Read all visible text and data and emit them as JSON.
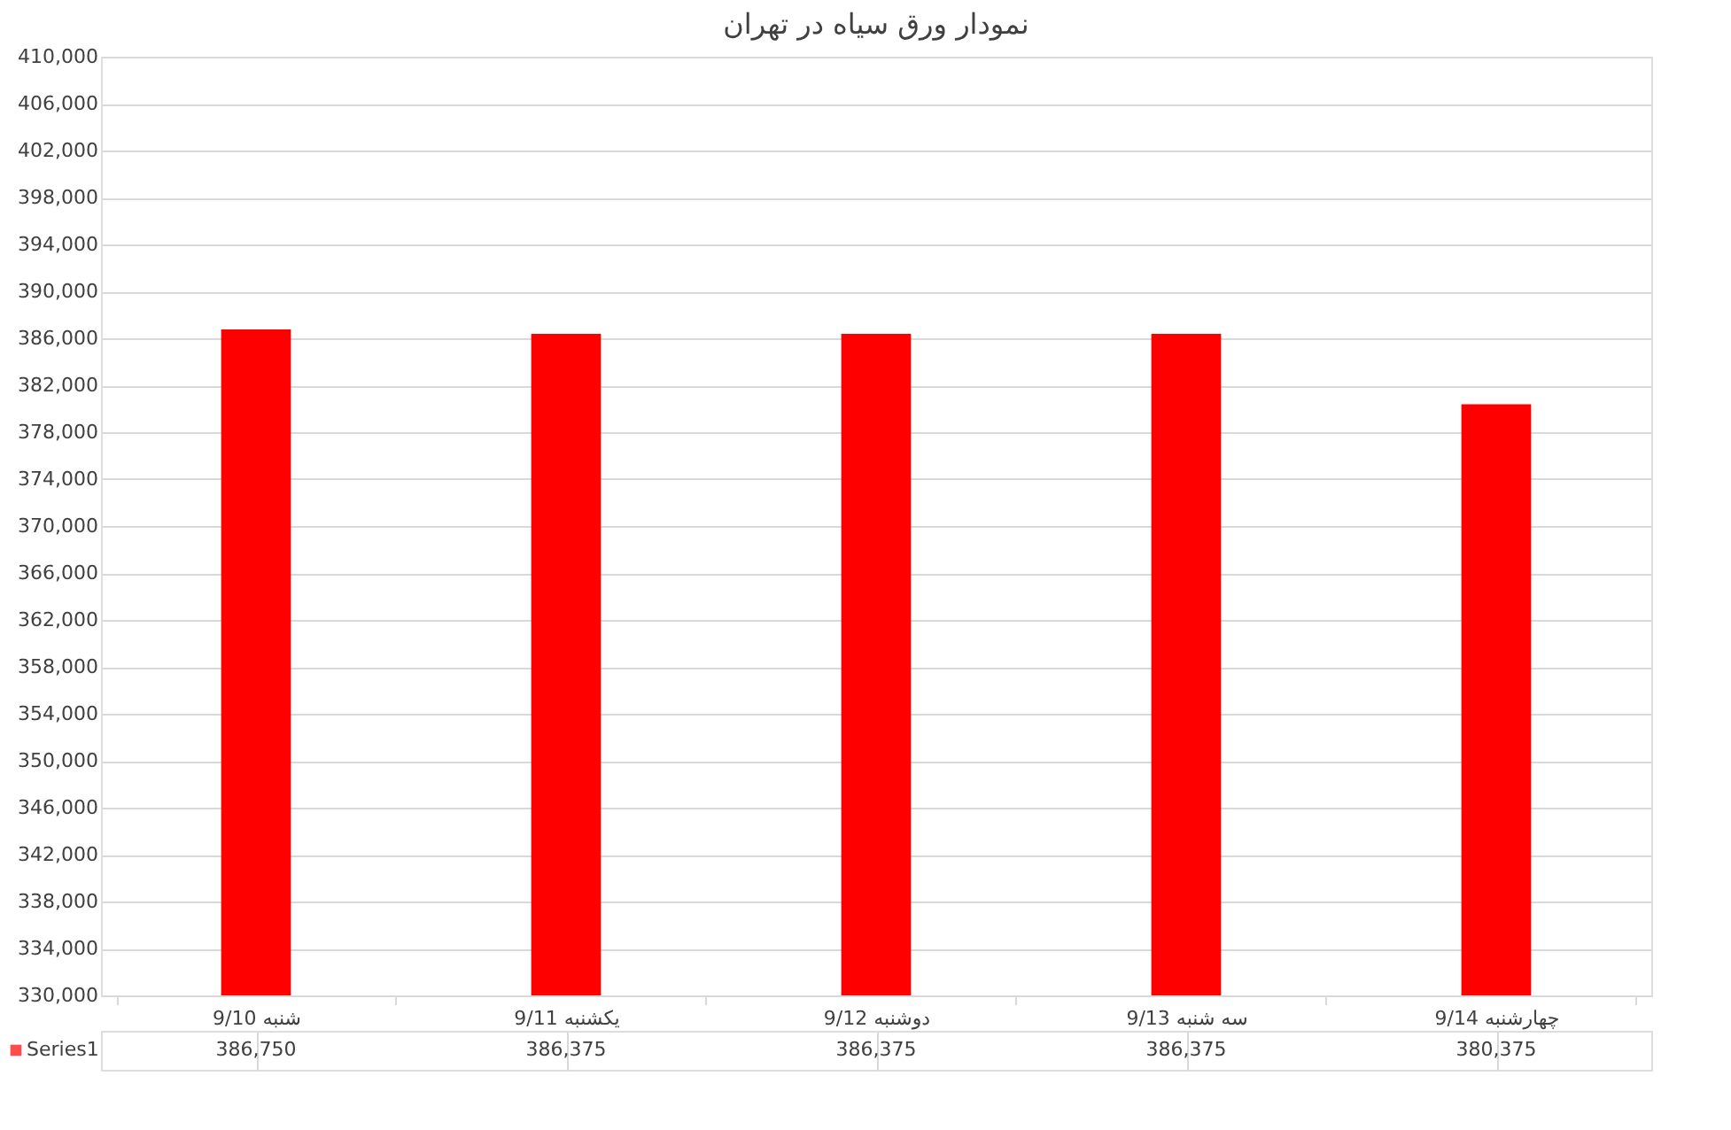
{
  "chart_data": {
    "type": "bar",
    "title": "نمودار ورق سیاه در تهران",
    "categories": [
      "شنبه 9/10",
      "یکشنبه 9/11",
      "دوشنبه 9/12",
      "سه شنبه 9/13",
      "چهارشنبه 9/14"
    ],
    "series": [
      {
        "name": "Series1",
        "color": "#ff0000",
        "values": [
          386750,
          386375,
          386375,
          386375,
          380375
        ],
        "value_labels": [
          "386,750",
          "386,375",
          "386,375",
          "386,375",
          "380,375"
        ]
      }
    ],
    "ylim": [
      330000,
      410000
    ],
    "yticks": [
      {
        "value": 330000,
        "label": "330,000"
      },
      {
        "value": 334000,
        "label": "334,000"
      },
      {
        "value": 338000,
        "label": "338,000"
      },
      {
        "value": 342000,
        "label": "342,000"
      },
      {
        "value": 346000,
        "label": "346,000"
      },
      {
        "value": 350000,
        "label": "350,000"
      },
      {
        "value": 354000,
        "label": "354,000"
      },
      {
        "value": 358000,
        "label": "358,000"
      },
      {
        "value": 362000,
        "label": "362,000"
      },
      {
        "value": 366000,
        "label": "366,000"
      },
      {
        "value": 370000,
        "label": "370,000"
      },
      {
        "value": 374000,
        "label": "374,000"
      },
      {
        "value": 378000,
        "label": "378,000"
      },
      {
        "value": 382000,
        "label": "382,000"
      },
      {
        "value": 386000,
        "label": "386,000"
      },
      {
        "value": 390000,
        "label": "390,000"
      },
      {
        "value": 394000,
        "label": "394,000"
      },
      {
        "value": 398000,
        "label": "398,000"
      },
      {
        "value": 402000,
        "label": "402,000"
      },
      {
        "value": 406000,
        "label": "406,000"
      },
      {
        "value": 410000,
        "label": "410,000"
      }
    ],
    "grid": "y",
    "legend": "bottom"
  }
}
